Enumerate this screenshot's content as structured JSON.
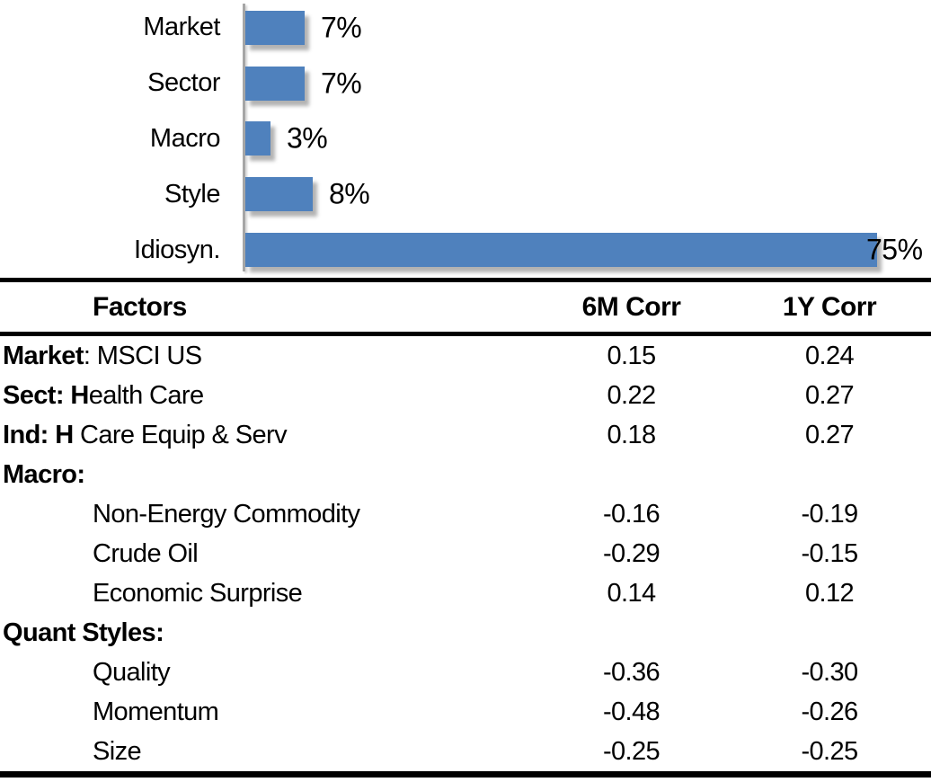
{
  "chart_data": [
    {
      "type": "bar",
      "orientation": "horizontal",
      "title": "",
      "xlabel": "",
      "ylabel": "",
      "legend": false,
      "grid": false,
      "categories": [
        "Market",
        "Sector",
        "Macro",
        "Style",
        "Idiosyn."
      ],
      "values": [
        7,
        7,
        3,
        8,
        75
      ],
      "value_labels": [
        "7%",
        "7%",
        "3%",
        "8%",
        "75%"
      ],
      "xlim": [
        0,
        80
      ],
      "bar_color": "#4F81BD",
      "axis_color": "#A6A6A6"
    },
    {
      "type": "table",
      "columns": [
        "Factors",
        "6M Corr",
        "1Y Corr"
      ],
      "rows": [
        {
          "bold": "Market",
          "text": ": MSCI US",
          "indent": false,
          "corr_6m": "0.15",
          "corr_1y": "0.24"
        },
        {
          "bold": "Sect: H",
          "text": "ealth Care",
          "indent": false,
          "corr_6m": "0.22",
          "corr_1y": "0.27"
        },
        {
          "bold": "Ind: H",
          "text": " Care Equip & Serv",
          "indent": false,
          "corr_6m": "0.18",
          "corr_1y": "0.27"
        },
        {
          "bold": "Macro:",
          "text": "",
          "indent": false,
          "corr_6m": "",
          "corr_1y": ""
        },
        {
          "bold": "",
          "text": "Non-Energy Commodity",
          "indent": true,
          "corr_6m": "-0.16",
          "corr_1y": "-0.19"
        },
        {
          "bold": "",
          "text": "Crude Oil",
          "indent": true,
          "corr_6m": "-0.29",
          "corr_1y": "-0.15"
        },
        {
          "bold": "",
          "text": "Economic Surprise",
          "indent": true,
          "corr_6m": "0.14",
          "corr_1y": "0.12"
        },
        {
          "bold": "Quant Styles:",
          "text": "",
          "indent": false,
          "corr_6m": "",
          "corr_1y": ""
        },
        {
          "bold": "",
          "text": "Quality",
          "indent": true,
          "corr_6m": "-0.36",
          "corr_1y": "-0.30"
        },
        {
          "bold": "",
          "text": "Momentum",
          "indent": true,
          "corr_6m": "-0.48",
          "corr_1y": "-0.26"
        },
        {
          "bold": "",
          "text": "Size",
          "indent": true,
          "corr_6m": "-0.25",
          "corr_1y": "-0.25"
        }
      ]
    }
  ],
  "colors": {
    "bar": "#4F81BD",
    "axis": "#A6A6A6",
    "text": "#000000",
    "rule": "#000000"
  }
}
